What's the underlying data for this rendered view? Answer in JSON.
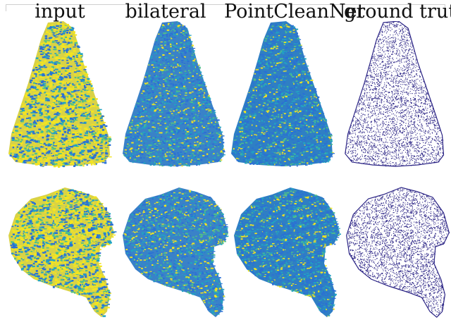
{
  "columns": [
    {
      "key": "input",
      "label": "input"
    },
    {
      "key": "bilateral",
      "label": "bilateral"
    },
    {
      "key": "pointcleannet",
      "label": "PointCleanNet"
    },
    {
      "key": "ground_truth",
      "label": "ground truth"
    }
  ],
  "rows": [
    {
      "subject": "seated-figure-statue"
    },
    {
      "subject": "dragon-like-figure"
    }
  ],
  "colors": {
    "viridis_dark": "#2e1f8a",
    "blue": "#2a6fd6",
    "teal": "#22a4c2",
    "green": "#4fbf8a",
    "yellow": "#f4e51f",
    "ground_truth_points": "#2b2485"
  }
}
